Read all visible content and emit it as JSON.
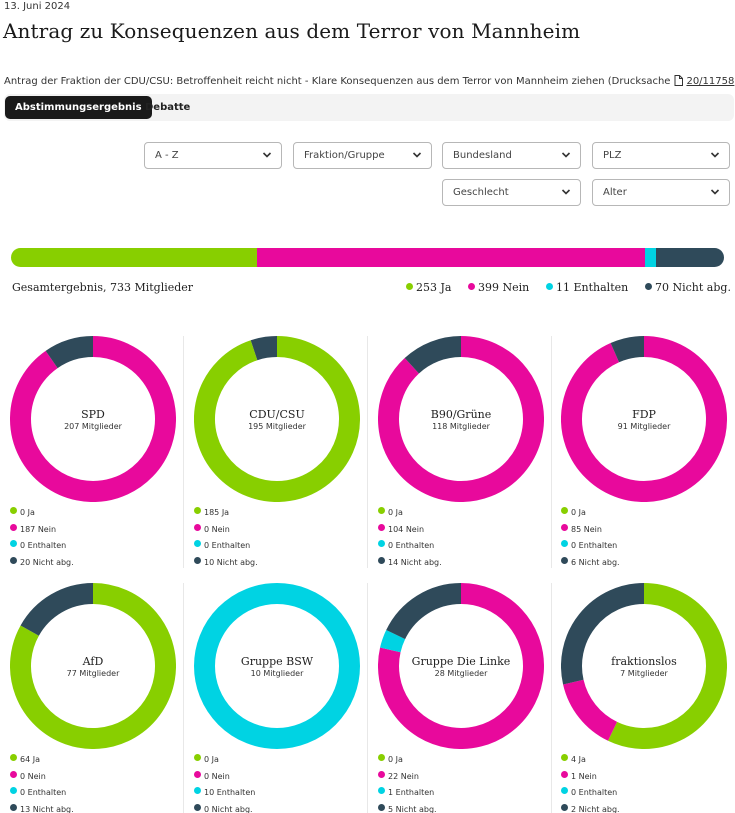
{
  "date": "13. Juni 2024",
  "title": "Antrag zu Konsequenzen aus dem Terror von Mannheim",
  "subtitle": {
    "text": "Antrag der Fraktion der CDU/CSU: Betroffenheit reicht nicht - Klare Konsequenzen aus dem Terror von Mannheim ziehen (Drucksache",
    "doc_icon": "document-icon",
    "link": "20/11758",
    "suffix": ")"
  },
  "tabs": [
    {
      "label": "Abstimmungsergebnis",
      "active": true
    },
    {
      "label": "Debatte",
      "active": false
    }
  ],
  "filters": {
    "sort": "A - Z",
    "fraktion": "Fraktion/Gruppe",
    "bundesland": "Bundesland",
    "plz": "PLZ",
    "geschlecht": "Geschlecht",
    "alter": "Alter"
  },
  "colors": {
    "ja": "#88cf00",
    "nein": "#e8099c",
    "enthalten": "#00d3e3",
    "nicht_abg": "#2f4a5a"
  },
  "total": {
    "label": "Gesamtergebnis, 733 Mitglieder",
    "ja": 253,
    "nein": 399,
    "enthalten": 11,
    "nicht_abg": 70,
    "ja_label": "253 Ja",
    "nein_label": "399 Nein",
    "enthalten_label": "11 Enthalten",
    "nicht_abg_label": "70 Nicht abg."
  },
  "parties": [
    {
      "name": "SPD",
      "members": "207 Mitglieder",
      "ja": 0,
      "nein": 187,
      "enthalten": 0,
      "nicht_abg": 20,
      "labels": [
        "0 Ja",
        "187 Nein",
        "0 Enthalten",
        "20 Nicht abg."
      ]
    },
    {
      "name": "CDU/CSU",
      "members": "195 Mitglieder",
      "ja": 185,
      "nein": 0,
      "enthalten": 0,
      "nicht_abg": 10,
      "labels": [
        "185 Ja",
        "0 Nein",
        "0 Enthalten",
        "10 Nicht abg."
      ]
    },
    {
      "name": "B90/Grüne",
      "members": "118 Mitglieder",
      "ja": 0,
      "nein": 104,
      "enthalten": 0,
      "nicht_abg": 14,
      "labels": [
        "0 Ja",
        "104 Nein",
        "0 Enthalten",
        "14 Nicht abg."
      ]
    },
    {
      "name": "FDP",
      "members": "91 Mitglieder",
      "ja": 0,
      "nein": 85,
      "enthalten": 0,
      "nicht_abg": 6,
      "labels": [
        "0 Ja",
        "85 Nein",
        "0 Enthalten",
        "6 Nicht abg."
      ]
    },
    {
      "name": "AfD",
      "members": "77 Mitglieder",
      "ja": 64,
      "nein": 0,
      "enthalten": 0,
      "nicht_abg": 13,
      "labels": [
        "64 Ja",
        "0 Nein",
        "0 Enthalten",
        "13 Nicht abg."
      ]
    },
    {
      "name": "Gruppe BSW",
      "members": "10 Mitglieder",
      "ja": 0,
      "nein": 0,
      "enthalten": 10,
      "nicht_abg": 0,
      "labels": [
        "0 Ja",
        "0 Nein",
        "10 Enthalten",
        "0 Nicht abg."
      ]
    },
    {
      "name": "Gruppe Die Linke",
      "members": "28 Mitglieder",
      "ja": 0,
      "nein": 22,
      "enthalten": 1,
      "nicht_abg": 5,
      "labels": [
        "0 Ja",
        "22 Nein",
        "1 Enthalten",
        "5 Nicht abg."
      ]
    },
    {
      "name": "fraktionslos",
      "members": "7 Mitglieder",
      "ja": 4,
      "nein": 1,
      "enthalten": 0,
      "nicht_abg": 2,
      "labels": [
        "4 Ja",
        "1 Nein",
        "0 Enthalten",
        "2 Nicht abg."
      ]
    }
  ]
}
